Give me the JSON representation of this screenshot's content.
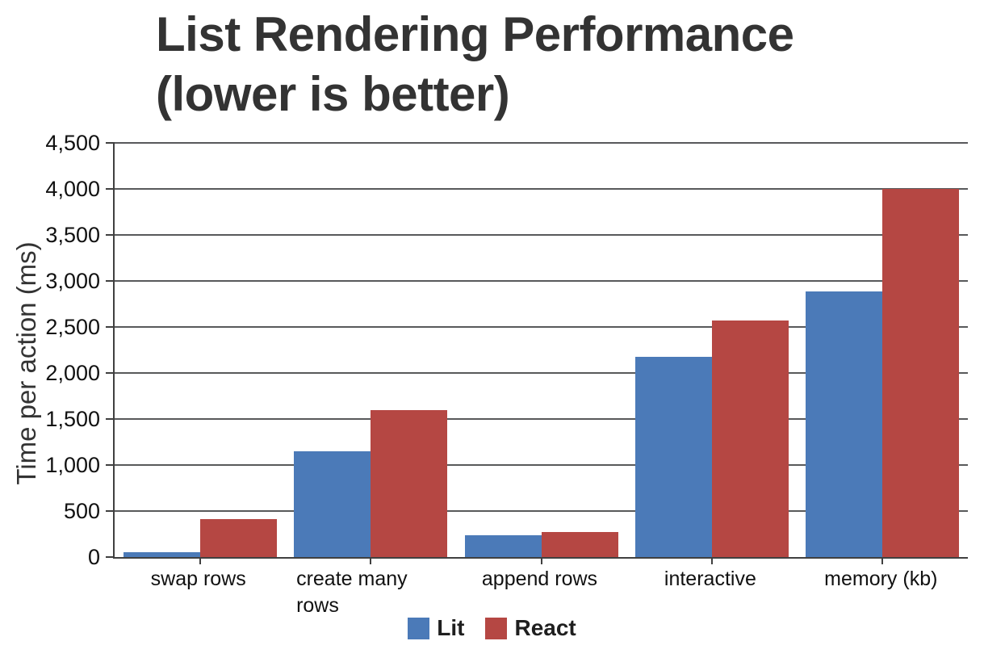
{
  "chart_data": {
    "type": "bar",
    "title": "List Rendering Performance (lower is better)",
    "title_lines": [
      "List Rendering Performance",
      "(lower is better)"
    ],
    "ylabel": "Time per action (ms)",
    "xlabel": "",
    "categories": [
      "swap rows",
      "create many rows",
      "append rows",
      "interactive",
      "memory (kb)"
    ],
    "series": [
      {
        "name": "Lit",
        "color": "#4b7ab8",
        "values": [
          50,
          1150,
          235,
          2175,
          2890
        ]
      },
      {
        "name": "React",
        "color": "#b54743",
        "values": [
          410,
          1600,
          270,
          2570,
          4000
        ]
      }
    ],
    "ylim": [
      0,
      4500
    ],
    "ytick_step": 500,
    "ytick_labels": [
      "0",
      "500",
      "1,000",
      "1,500",
      "2,000",
      "2,500",
      "3,000",
      "3,500",
      "4,000",
      "4,500"
    ],
    "grid": true,
    "legend_position": "bottom"
  },
  "colors": {
    "lit_blue": "#4b7ab8",
    "react_red": "#b54743",
    "grid_line": "#58595b",
    "axis_line": "#404040",
    "title_text": "#333333",
    "label_text": "#111111",
    "background": "#ffffff"
  }
}
